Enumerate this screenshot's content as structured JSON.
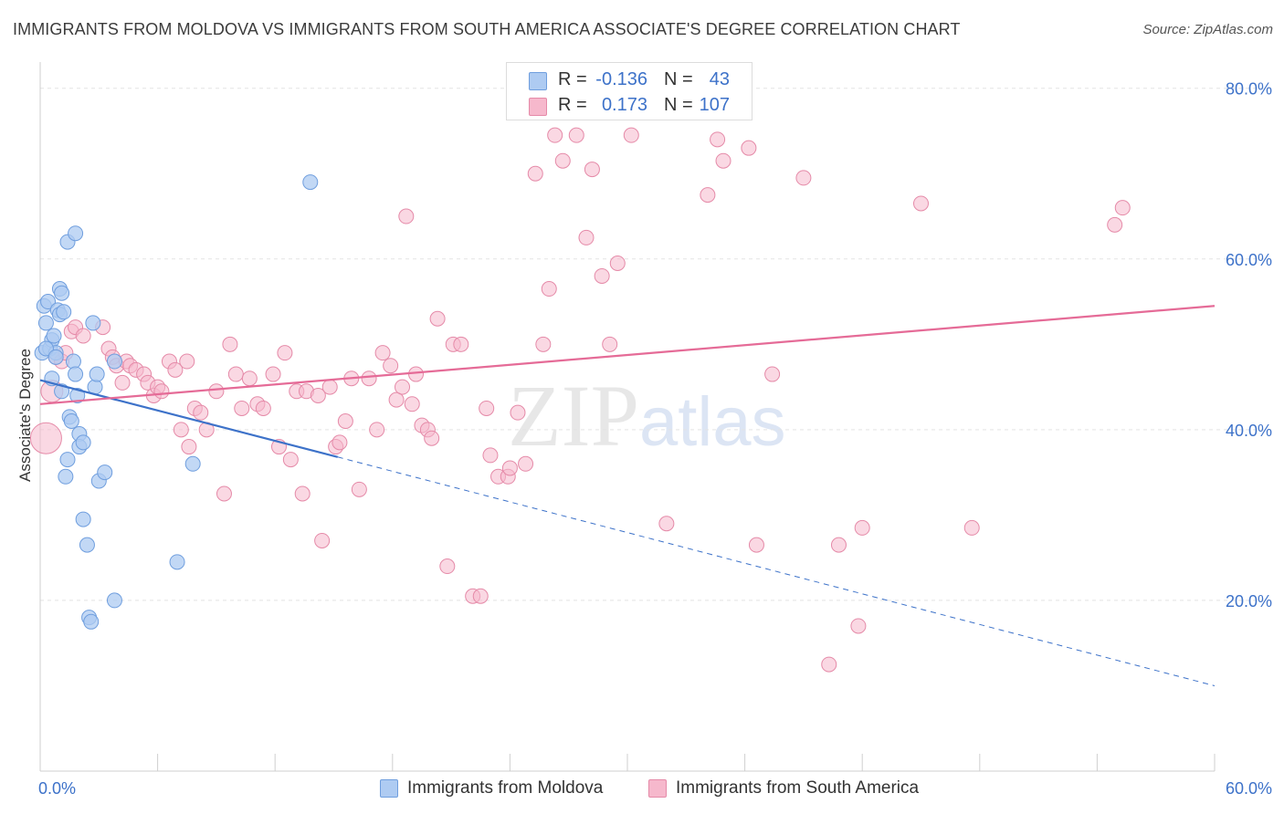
{
  "title": "IMMIGRANTS FROM MOLDOVA VS IMMIGRANTS FROM SOUTH AMERICA ASSOCIATE'S DEGREE CORRELATION CHART",
  "source": "Source: ZipAtlas.com",
  "watermark": {
    "zip": "ZIP",
    "atlas": "atlas"
  },
  "stats": [
    {
      "r_label": "R =",
      "r_value": "-0.136",
      "n_label": "N =",
      "n_value": "43",
      "color": "#aecbf2"
    },
    {
      "r_label": "R =",
      "r_value": "0.173",
      "n_label": "N =",
      "n_value": "107",
      "color": "#f6b8cc"
    }
  ],
  "legend": [
    {
      "label": "Immigrants from Moldova",
      "color": "#aecbf2"
    },
    {
      "label": "Immigrants from South America",
      "color": "#f6b8cc"
    }
  ],
  "chart_data": {
    "type": "scatter",
    "title": "IMMIGRANTS FROM MOLDOVA VS IMMIGRANTS FROM SOUTH AMERICA ASSOCIATE'S DEGREE CORRELATION CHART",
    "xlabel": "",
    "ylabel": "Associate's Degree",
    "xlim": [
      0,
      60
    ],
    "ylim": [
      0,
      82
    ],
    "x_tick_labels": [
      "0.0%",
      "60.0%"
    ],
    "y_ticks": [
      20,
      40,
      60,
      80
    ],
    "y_tick_labels": [
      "20.0%",
      "40.0%",
      "60.0%",
      "80.0%"
    ],
    "grid": "horizontal dashed",
    "series": [
      {
        "name": "Immigrants from Moldova",
        "color": "#3d72c9",
        "fill": "#aecbf2",
        "points": [
          [
            0.1,
            49.0
          ],
          [
            0.2,
            54.5
          ],
          [
            0.3,
            52.5
          ],
          [
            0.4,
            55.0
          ],
          [
            0.5,
            49.5
          ],
          [
            0.6,
            50.5
          ],
          [
            0.6,
            46.0
          ],
          [
            0.7,
            51.0
          ],
          [
            0.8,
            49.0
          ],
          [
            0.9,
            54.0
          ],
          [
            1.0,
            53.5
          ],
          [
            1.0,
            56.5
          ],
          [
            1.1,
            56.0
          ],
          [
            1.1,
            44.5
          ],
          [
            1.2,
            53.8
          ],
          [
            1.3,
            34.5
          ],
          [
            1.4,
            36.5
          ],
          [
            1.4,
            62.0
          ],
          [
            1.5,
            41.5
          ],
          [
            1.6,
            41.0
          ],
          [
            1.7,
            48.0
          ],
          [
            1.8,
            46.5
          ],
          [
            1.8,
            63.0
          ],
          [
            2.0,
            39.5
          ],
          [
            2.0,
            38.0
          ],
          [
            2.2,
            38.5
          ],
          [
            2.2,
            29.5
          ],
          [
            2.4,
            26.5
          ],
          [
            2.5,
            18.0
          ],
          [
            2.6,
            17.5
          ],
          [
            2.8,
            45.0
          ],
          [
            2.9,
            46.5
          ],
          [
            3.0,
            34.0
          ],
          [
            3.3,
            35.0
          ],
          [
            3.8,
            20.0
          ],
          [
            3.8,
            48.0
          ],
          [
            7.0,
            24.5
          ],
          [
            7.8,
            36.0
          ],
          [
            13.8,
            69.0
          ],
          [
            0.3,
            49.5
          ],
          [
            0.8,
            48.5
          ],
          [
            2.7,
            52.5
          ],
          [
            1.9,
            44.0
          ]
        ],
        "trend": {
          "x0": 0,
          "y0": 45.8,
          "x1": 15.2,
          "y1": 36.8,
          "dashed_to_x": 60,
          "dashed_to_y": 10.0
        }
      },
      {
        "name": "Immigrants from South America",
        "color": "#e56b97",
        "fill": "#f6b8cc",
        "points": [
          [
            0.3,
            39.0
          ],
          [
            0.6,
            44.5
          ],
          [
            0.8,
            48.5
          ],
          [
            1.1,
            48.0
          ],
          [
            1.3,
            49.0
          ],
          [
            1.6,
            51.5
          ],
          [
            1.8,
            52.0
          ],
          [
            2.2,
            51.0
          ],
          [
            3.2,
            52.0
          ],
          [
            3.5,
            49.5
          ],
          [
            3.7,
            48.5
          ],
          [
            3.9,
            47.5
          ],
          [
            4.2,
            45.5
          ],
          [
            4.4,
            48.0
          ],
          [
            4.6,
            47.5
          ],
          [
            4.9,
            47.0
          ],
          [
            5.3,
            46.5
          ],
          [
            5.5,
            45.5
          ],
          [
            5.8,
            44.0
          ],
          [
            6.0,
            45.0
          ],
          [
            6.2,
            44.5
          ],
          [
            6.6,
            48.0
          ],
          [
            6.9,
            47.0
          ],
          [
            7.2,
            40.0
          ],
          [
            7.5,
            48.0
          ],
          [
            7.6,
            38.0
          ],
          [
            7.9,
            42.5
          ],
          [
            8.2,
            42.0
          ],
          [
            8.5,
            40.0
          ],
          [
            9.0,
            44.5
          ],
          [
            9.4,
            32.5
          ],
          [
            9.7,
            50.0
          ],
          [
            10.0,
            46.5
          ],
          [
            10.3,
            42.5
          ],
          [
            10.7,
            46.0
          ],
          [
            11.1,
            43.0
          ],
          [
            11.4,
            42.5
          ],
          [
            11.9,
            46.5
          ],
          [
            12.2,
            38.0
          ],
          [
            12.5,
            49.0
          ],
          [
            12.8,
            36.5
          ],
          [
            13.1,
            44.5
          ],
          [
            13.4,
            32.5
          ],
          [
            13.6,
            44.5
          ],
          [
            14.2,
            44.0
          ],
          [
            14.4,
            27.0
          ],
          [
            14.8,
            45.0
          ],
          [
            15.1,
            38.0
          ],
          [
            15.3,
            38.5
          ],
          [
            15.6,
            41.0
          ],
          [
            15.9,
            46.0
          ],
          [
            16.3,
            33.0
          ],
          [
            16.8,
            46.0
          ],
          [
            17.2,
            40.0
          ],
          [
            17.5,
            49.0
          ],
          [
            17.9,
            47.5
          ],
          [
            18.2,
            43.5
          ],
          [
            18.5,
            45.0
          ],
          [
            18.7,
            65.0
          ],
          [
            19.0,
            43.0
          ],
          [
            19.2,
            46.5
          ],
          [
            19.5,
            40.5
          ],
          [
            19.8,
            40.0
          ],
          [
            20.0,
            39.0
          ],
          [
            20.3,
            53.0
          ],
          [
            20.8,
            24.0
          ],
          [
            21.1,
            50.0
          ],
          [
            21.5,
            50.0
          ],
          [
            22.1,
            20.5
          ],
          [
            22.5,
            20.5
          ],
          [
            22.8,
            42.5
          ],
          [
            23.0,
            37.0
          ],
          [
            23.4,
            34.5
          ],
          [
            23.9,
            34.5
          ],
          [
            24.0,
            35.5
          ],
          [
            24.4,
            42.0
          ],
          [
            24.8,
            36.0
          ],
          [
            25.3,
            70.0
          ],
          [
            25.7,
            50.0
          ],
          [
            26.0,
            56.5
          ],
          [
            26.3,
            74.5
          ],
          [
            26.7,
            71.5
          ],
          [
            27.4,
            74.5
          ],
          [
            27.9,
            62.5
          ],
          [
            28.2,
            70.5
          ],
          [
            28.7,
            58.0
          ],
          [
            29.1,
            50.0
          ],
          [
            29.5,
            59.5
          ],
          [
            30.2,
            74.5
          ],
          [
            32.0,
            29.0
          ],
          [
            34.1,
            67.5
          ],
          [
            34.6,
            74.0
          ],
          [
            34.9,
            71.5
          ],
          [
            36.2,
            73.0
          ],
          [
            36.6,
            26.5
          ],
          [
            37.4,
            46.5
          ],
          [
            39.0,
            69.5
          ],
          [
            40.3,
            12.5
          ],
          [
            40.8,
            26.5
          ],
          [
            41.8,
            17.0
          ],
          [
            42.0,
            28.5
          ],
          [
            45.0,
            66.5
          ],
          [
            47.6,
            28.5
          ],
          [
            54.9,
            64.0
          ],
          [
            55.3,
            66.0
          ]
        ],
        "trend": {
          "x0": 0,
          "y0": 43.0,
          "x1": 60,
          "y1": 54.5
        }
      }
    ]
  }
}
